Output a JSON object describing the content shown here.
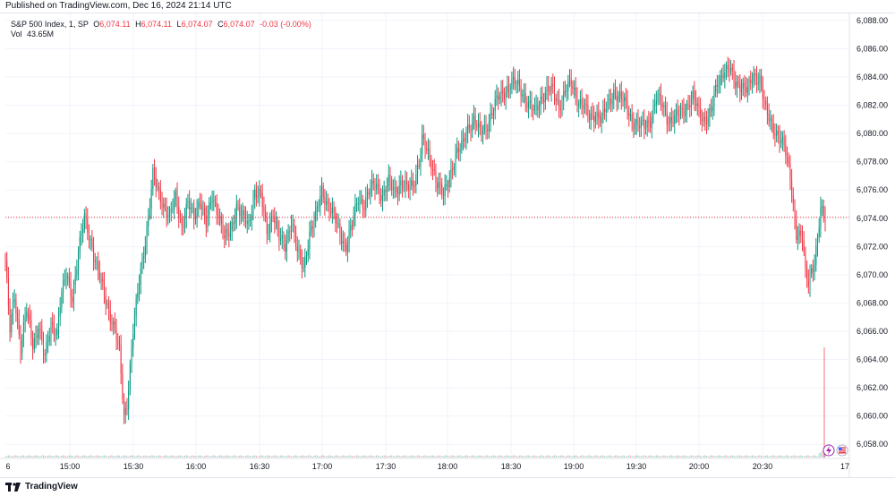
{
  "header": {
    "published_text": "Published on TradingView.com, Dec 16, 2024 21:14 UTC"
  },
  "legend": {
    "symbol": "S&P 500 Index, 1, SP",
    "open_label": "O",
    "open": "6,074.11",
    "high_label": "H",
    "high": "6,074.11",
    "low_label": "L",
    "low": "6,074.07",
    "close_label": "C",
    "close": "6,074.07",
    "change": "-0.03 (-0.00%)",
    "vol_label": "Vol",
    "vol_value": "43.65M"
  },
  "footer": {
    "brand": "TradingView"
  },
  "colors": {
    "up": "#089981",
    "down": "#f23645",
    "grid": "#f0f3fa",
    "axis_text": "#131722"
  },
  "chart_data": {
    "type": "candlestick",
    "y_ticks": [
      "6,058.00",
      "6,060.00",
      "6,062.00",
      "6,064.00",
      "6,066.00",
      "6,068.00",
      "6,070.00",
      "6,072.00",
      "6,074.00",
      "6,076.00",
      "6,078.00",
      "6,080.00",
      "6,082.00",
      "6,084.00",
      "6,086.00",
      "6,088.00"
    ],
    "ylim": [
      6057,
      6088.5
    ],
    "x_ticks": [
      "6",
      "15:00",
      "15:30",
      "16:00",
      "16:30",
      "17:00",
      "17:30",
      "18:00",
      "18:30",
      "19:00",
      "19:30",
      "20:00",
      "20:30",
      "17"
    ],
    "last_price_label": "6,074.07",
    "last_price": 6074.07,
    "volume_label": "43.65M",
    "keypoints": [
      [
        0,
        6071.0
      ],
      [
        3,
        6066.0
      ],
      [
        6,
        6068.5
      ],
      [
        10,
        6065.0
      ],
      [
        14,
        6067.5
      ],
      [
        18,
        6065.0
      ],
      [
        22,
        6066.5
      ],
      [
        26,
        6064.0
      ],
      [
        30,
        6066.5
      ],
      [
        34,
        6066.0
      ],
      [
        36,
        6068.0
      ],
      [
        40,
        6070.0
      ],
      [
        44,
        6068.5
      ],
      [
        48,
        6071.5
      ],
      [
        52,
        6074.0
      ],
      [
        56,
        6072.5
      ],
      [
        60,
        6070.5
      ],
      [
        64,
        6069.0
      ],
      [
        68,
        6067.5
      ],
      [
        72,
        6066.0
      ],
      [
        75,
        6064.5
      ],
      [
        78,
        6060.0
      ],
      [
        80,
        6061.0
      ],
      [
        84,
        6066.0
      ],
      [
        88,
        6069.5
      ],
      [
        92,
        6072.5
      ],
      [
        95,
        6075.0
      ],
      [
        97,
        6077.0
      ],
      [
        100,
        6076.0
      ],
      [
        104,
        6075.0
      ],
      [
        108,
        6074.0
      ],
      [
        112,
        6075.5
      ],
      [
        116,
        6073.5
      ],
      [
        120,
        6075.0
      ],
      [
        124,
        6074.0
      ],
      [
        128,
        6075.5
      ],
      [
        132,
        6073.5
      ],
      [
        136,
        6075.5
      ],
      [
        140,
        6074.5
      ],
      [
        144,
        6072.5
      ],
      [
        148,
        6073.0
      ],
      [
        152,
        6075.0
      ],
      [
        156,
        6074.0
      ],
      [
        160,
        6073.5
      ],
      [
        164,
        6076.0
      ],
      [
        168,
        6075.5
      ],
      [
        172,
        6073.0
      ],
      [
        176,
        6074.5
      ],
      [
        180,
        6072.5
      ],
      [
        184,
        6072.0
      ],
      [
        188,
        6074.0
      ],
      [
        192,
        6071.5
      ],
      [
        196,
        6070.5
      ],
      [
        200,
        6073.0
      ],
      [
        204,
        6074.0
      ],
      [
        208,
        6076.0
      ],
      [
        212,
        6075.0
      ],
      [
        216,
        6074.0
      ],
      [
        220,
        6073.0
      ],
      [
        224,
        6072.0
      ],
      [
        228,
        6073.5
      ],
      [
        232,
        6075.5
      ],
      [
        236,
        6075.0
      ],
      [
        240,
        6076.0
      ],
      [
        244,
        6076.5
      ],
      [
        248,
        6075.5
      ],
      [
        252,
        6076.5
      ],
      [
        256,
        6076.0
      ],
      [
        260,
        6076.5
      ],
      [
        264,
        6076.0
      ],
      [
        268,
        6076.5
      ],
      [
        272,
        6078.0
      ],
      [
        274,
        6079.5
      ],
      [
        276,
        6079.0
      ],
      [
        280,
        6078.0
      ],
      [
        284,
        6076.5
      ],
      [
        288,
        6075.5
      ],
      [
        292,
        6077.0
      ],
      [
        296,
        6078.5
      ],
      [
        300,
        6079.0
      ],
      [
        304,
        6080.5
      ],
      [
        308,
        6081.0
      ],
      [
        312,
        6080.0
      ],
      [
        316,
        6080.5
      ],
      [
        320,
        6081.5
      ],
      [
        324,
        6082.5
      ],
      [
        328,
        6083.0
      ],
      [
        332,
        6083.5
      ],
      [
        336,
        6083.5
      ],
      [
        340,
        6083.0
      ],
      [
        344,
        6082.0
      ],
      [
        348,
        6081.5
      ],
      [
        352,
        6082.5
      ],
      [
        356,
        6083.0
      ],
      [
        360,
        6083.0
      ],
      [
        364,
        6082.0
      ],
      [
        368,
        6083.0
      ],
      [
        372,
        6083.5
      ],
      [
        376,
        6082.5
      ],
      [
        380,
        6082.0
      ],
      [
        384,
        6081.0
      ],
      [
        388,
        6081.5
      ],
      [
        392,
        6081.0
      ],
      [
        396,
        6082.0
      ],
      [
        400,
        6083.0
      ],
      [
        404,
        6082.5
      ],
      [
        408,
        6082.0
      ],
      [
        412,
        6081.0
      ],
      [
        416,
        6080.5
      ],
      [
        420,
        6080.5
      ],
      [
        424,
        6081.0
      ],
      [
        428,
        6082.5
      ],
      [
        432,
        6082.0
      ],
      [
        436,
        6081.0
      ],
      [
        440,
        6081.0
      ],
      [
        444,
        6081.5
      ],
      [
        448,
        6082.0
      ],
      [
        452,
        6082.5
      ],
      [
        456,
        6081.5
      ],
      [
        460,
        6081.0
      ],
      [
        464,
        6081.5
      ],
      [
        468,
        6083.5
      ],
      [
        472,
        6084.5
      ],
      [
        476,
        6084.5
      ],
      [
        480,
        6083.5
      ],
      [
        484,
        6083.5
      ],
      [
        488,
        6083.0
      ],
      [
        492,
        6084.0
      ],
      [
        496,
        6084.0
      ],
      [
        500,
        6081.5
      ],
      [
        504,
        6080.5
      ],
      [
        508,
        6080.0
      ],
      [
        512,
        6079.0
      ],
      [
        516,
        6077.0
      ],
      [
        518,
        6075.0
      ],
      [
        520,
        6073.0
      ],
      [
        524,
        6072.5
      ],
      [
        526,
        6070.0
      ],
      [
        528,
        6069.5
      ],
      [
        530,
        6070.5
      ],
      [
        532,
        6071.0
      ],
      [
        534,
        6072.5
      ],
      [
        536,
        6074.5
      ],
      [
        538,
        6074.1
      ],
      [
        539,
        6074.07
      ]
    ]
  }
}
